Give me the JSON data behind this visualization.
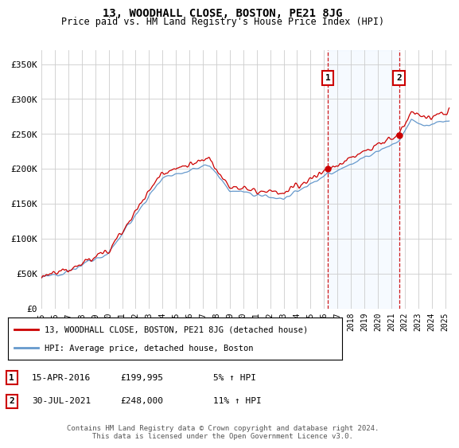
{
  "title": "13, WOODHALL CLOSE, BOSTON, PE21 8JG",
  "subtitle": "Price paid vs. HM Land Registry's House Price Index (HPI)",
  "ylabel_ticks": [
    "£0",
    "£50K",
    "£100K",
    "£150K",
    "£200K",
    "£250K",
    "£300K",
    "£350K"
  ],
  "ytick_values": [
    0,
    50000,
    100000,
    150000,
    200000,
    250000,
    300000,
    350000
  ],
  "ylim": [
    0,
    370000
  ],
  "xlim_start": 1995.0,
  "xlim_end": 2025.5,
  "sale1_date": 2016.29,
  "sale1_price": 199995,
  "sale1_label": "1",
  "sale1_text": "15-APR-2016",
  "sale1_price_text": "£199,995",
  "sale1_hpi_text": "5% ↑ HPI",
  "sale2_date": 2021.58,
  "sale2_price": 248000,
  "sale2_label": "2",
  "sale2_text": "30-JUL-2021",
  "sale2_price_text": "£248,000",
  "sale2_hpi_text": "11% ↑ HPI",
  "line_color_red": "#cc0000",
  "line_color_blue": "#6699cc",
  "vline_color": "#cc0000",
  "shade_color": "#ddeeff",
  "bg_color": "#ffffff",
  "grid_color": "#cccccc",
  "legend_line1": "13, WOODHALL CLOSE, BOSTON, PE21 8JG (detached house)",
  "legend_line2": "HPI: Average price, detached house, Boston",
  "footnote": "Contains HM Land Registry data © Crown copyright and database right 2024.\nThis data is licensed under the Open Government Licence v3.0.",
  "xtick_years": [
    1995,
    1996,
    1997,
    1998,
    1999,
    2000,
    2001,
    2002,
    2003,
    2004,
    2005,
    2006,
    2007,
    2008,
    2009,
    2010,
    2011,
    2012,
    2013,
    2014,
    2015,
    2016,
    2017,
    2018,
    2019,
    2020,
    2021,
    2022,
    2023,
    2024,
    2025
  ]
}
